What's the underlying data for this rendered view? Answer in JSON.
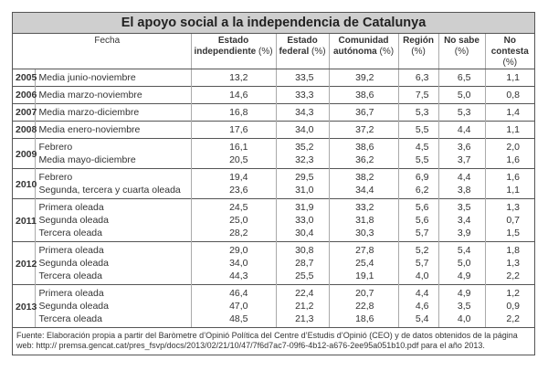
{
  "title": "El apoyo social a la independencia de Catalunya",
  "header": {
    "fecha": "Fecha",
    "columns": [
      {
        "name": "Estado independiente",
        "unit": "(%)",
        "line1": "Estado",
        "line2": "independiente"
      },
      {
        "name": "Estado federal",
        "unit": "(%)",
        "line1": "Estado",
        "line2": "federal"
      },
      {
        "name": "Comunidad autónoma",
        "unit": "(%)",
        "line1": "Comunidad",
        "line2": "autónoma"
      },
      {
        "name": "Región",
        "unit": "(%)",
        "line1": "Región",
        "line2": ""
      },
      {
        "name": "No sabe",
        "unit": "(%)",
        "line1": "No sabe",
        "line2": ""
      },
      {
        "name": "No contesta",
        "unit": "(%)",
        "line1": "No contesta",
        "line2": ""
      }
    ]
  },
  "groups": [
    {
      "year": "2005",
      "rows": [
        {
          "label": "Media junio-noviembre",
          "values": [
            "13,2",
            "33,5",
            "39,2",
            "6,3",
            "6,5",
            "1,1"
          ]
        }
      ]
    },
    {
      "year": "2006",
      "rows": [
        {
          "label": "Media marzo-noviembre",
          "values": [
            "14,6",
            "33,3",
            "38,6",
            "7,5",
            "5,0",
            "0,8"
          ]
        }
      ]
    },
    {
      "year": "2007",
      "rows": [
        {
          "label": "Media marzo-diciembre",
          "values": [
            "16,8",
            "34,3",
            "36,7",
            "5,3",
            "5,3",
            "1,4"
          ]
        }
      ]
    },
    {
      "year": "2008",
      "rows": [
        {
          "label": "Media enero-noviembre",
          "values": [
            "17,6",
            "34,0",
            "37,2",
            "5,5",
            "4,4",
            "1,1"
          ]
        }
      ]
    },
    {
      "year": "2009",
      "rows": [
        {
          "label": "Febrero",
          "values": [
            "16,1",
            "35,2",
            "38,6",
            "4,5",
            "3,6",
            "2,0"
          ]
        },
        {
          "label": "Media mayo-diciembre",
          "values": [
            "20,5",
            "32,3",
            "36,2",
            "5,5",
            "3,7",
            "1,6"
          ]
        }
      ]
    },
    {
      "year": "2010",
      "rows": [
        {
          "label": "Febrero",
          "values": [
            "19,4",
            "29,5",
            "38,2",
            "6,9",
            "4,4",
            "1,6"
          ]
        },
        {
          "label": "Segunda, tercera y cuarta oleada",
          "values": [
            "23,6",
            "31,0",
            "34,4",
            "6,2",
            "3,8",
            "1,1"
          ]
        }
      ]
    },
    {
      "year": "2011",
      "rows": [
        {
          "label": "Primera oleada",
          "values": [
            "24,5",
            "31,9",
            "33,2",
            "5,6",
            "3,5",
            "1,3"
          ]
        },
        {
          "label": "Segunda oleada",
          "values": [
            "25,0",
            "33,0",
            "31,8",
            "5,6",
            "3,4",
            "0,7"
          ]
        },
        {
          "label": "Tercera oleada",
          "values": [
            "28,2",
            "30,4",
            "30,3",
            "5,7",
            "3,9",
            "1,5"
          ]
        }
      ]
    },
    {
      "year": "2012",
      "rows": [
        {
          "label": "Primera oleada",
          "values": [
            "29,0",
            "30,8",
            "27,8",
            "5,2",
            "5,4",
            "1,8"
          ]
        },
        {
          "label": "Segunda oleada",
          "values": [
            "34,0",
            "28,7",
            "25,4",
            "5,7",
            "5,0",
            "1,3"
          ]
        },
        {
          "label": "Tercera oleada",
          "values": [
            "44,3",
            "25,5",
            "19,1",
            "4,0",
            "4,9",
            "2,2"
          ]
        }
      ]
    },
    {
      "year": "2013",
      "rows": [
        {
          "label": "Primera oleada",
          "values": [
            "46,4",
            "22,4",
            "20,7",
            "4,4",
            "4,9",
            "1,2"
          ]
        },
        {
          "label": "Segunda oleada",
          "values": [
            "47,0",
            "21,2",
            "22,8",
            "4,6",
            "3,5",
            "0,9"
          ]
        },
        {
          "label": "Tercera oleada",
          "values": [
            "48,5",
            "21,3",
            "18,6",
            "5,4",
            "4,0",
            "2,2"
          ]
        }
      ]
    }
  ],
  "source": "Fuente: Elaboración propia a partir del Baròmetre d’Opinió Política del Centre d’Estudis d’Opinió (CEO) y de datos obtenidos de la página web: http:// premsa.gencat.cat/pres_fsvp/docs/2013/02/21/10/47/7f6d7ac7-09f6-4b12-a676-2ee95a051b10.pdf para el año 2013."
}
